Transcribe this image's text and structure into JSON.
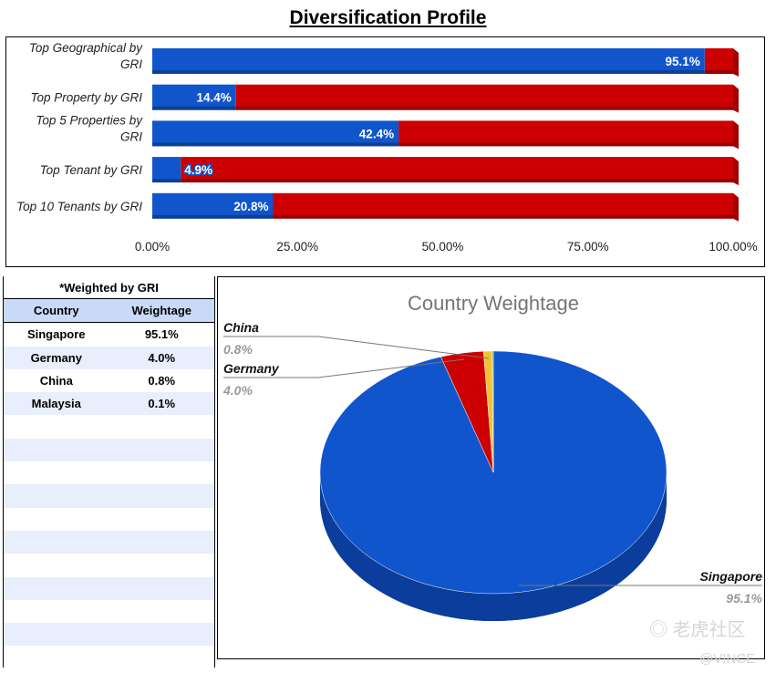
{
  "title": "Diversification Profile",
  "chart_data": [
    {
      "type": "bar",
      "stacked": true,
      "orientation": "horizontal",
      "categories": [
        [
          "Top Geographical by",
          "GRI"
        ],
        [
          "Top Property by GRI"
        ],
        [
          "Top 5 Properties by",
          "GRI"
        ],
        [
          "Top Tenant by GRI"
        ],
        [
          "Top 10 Tenants by GRI"
        ]
      ],
      "values": [
        95.1,
        14.4,
        42.4,
        4.9,
        20.8
      ],
      "labels": [
        "95.1%",
        "14.4%",
        "42.4%",
        "4.9%",
        "20.8%"
      ],
      "xlim": [
        0,
        100
      ],
      "xticks": [
        "0.00%",
        "25.00%",
        "50.00%",
        "75.00%",
        "100.00%"
      ],
      "colors": {
        "value": "#1155cc",
        "remainder": "#cc0000"
      }
    },
    {
      "type": "pie",
      "title": "Country Weightage",
      "slices": [
        {
          "name": "Singapore",
          "value": 95.1,
          "label": "95.1%",
          "color": "#1155cc"
        },
        {
          "name": "Germany",
          "value": 4.0,
          "label": "4.0%",
          "color": "#cc0000"
        },
        {
          "name": "China",
          "value": 0.8,
          "label": "0.8%",
          "color": "#f1c232"
        },
        {
          "name": "Malaysia",
          "value": 0.1,
          "label": "0.1%",
          "color": "#6aa84f"
        }
      ]
    }
  ],
  "table": {
    "caption": "*Weighted by GRI",
    "headers": [
      "Country",
      "Weightage"
    ],
    "rows": [
      [
        "Singapore",
        "95.1%"
      ],
      [
        "Germany",
        "4.0%"
      ],
      [
        "China",
        "0.8%"
      ],
      [
        "Malaysia",
        "0.1%"
      ]
    ]
  },
  "watermark": "老虎社区 @VINCE"
}
